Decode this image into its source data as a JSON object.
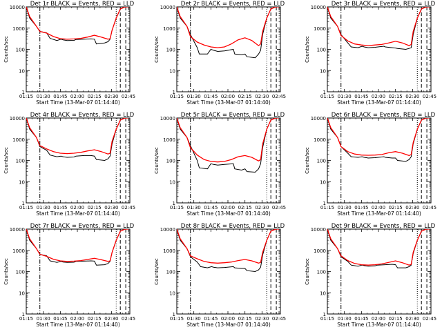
{
  "chart_data": [
    {
      "type": "line",
      "title": "Det 1r BLACK = Events, RED = LLD",
      "xlabel": "Start Time (13-Mar-07 01:14:40)",
      "ylabel": "Counts/sec",
      "yscale": "log",
      "ylim": [
        1,
        10000
      ],
      "x_ticks": [
        "01:15",
        "01:30",
        "01:45",
        "02:00",
        "02:15",
        "02:30",
        "02:45"
      ],
      "series": [
        {
          "color": "#000000",
          "x": [
            1.0,
            1.5,
            2.5,
            3.0,
            4.0,
            4.5,
            5.5,
            6.1,
            6.4,
            7.0,
            8.0,
            8.3,
            9.5,
            10.5,
            11.0,
            11.3,
            12.5,
            13.0,
            13.3,
            13.6,
            14.2,
            14.8,
            15.5,
            16.0
          ],
          "y": [
            10000,
            3000,
            1200,
            700,
            600,
            330,
            260,
            300,
            280,
            260,
            265,
            290,
            300,
            310,
            300,
            180,
            200,
            230,
            300,
            800,
            3000,
            8000,
            12000,
            12000
          ]
        },
        {
          "color": "#ff0000",
          "x": [
            1.0,
            1.5,
            2.5,
            3.0,
            4.0,
            5.0,
            6.0,
            7.0,
            8.0,
            9.0,
            10.0,
            11.0,
            12.0,
            13.0,
            13.3,
            13.6,
            14.2,
            14.8,
            15.5,
            16.0
          ],
          "y": [
            12000,
            3500,
            1200,
            700,
            580,
            400,
            320,
            300,
            310,
            330,
            380,
            460,
            380,
            300,
            320,
            800,
            3000,
            8000,
            12000,
            12000
          ]
        }
      ]
    },
    {
      "type": "line",
      "title": "Det 2r BLACK = Events, RED = LLD",
      "xlabel": "Start Time (13-Mar-07 01:14:40)",
      "ylabel": "Counts/sec",
      "yscale": "log",
      "ylim": [
        1,
        10000
      ],
      "x_ticks": [
        "01:15",
        "01:30",
        "01:45",
        "02:00",
        "02:15",
        "02:30",
        "02:45"
      ],
      "series": [
        {
          "color": "#000000",
          "x": [
            1.0,
            1.5,
            2.5,
            3.0,
            4.0,
            4.3,
            5.5,
            6.0,
            6.4,
            7.0,
            8.0,
            9.3,
            9.5,
            10.5,
            11.0,
            11.3,
            12.5,
            13.0,
            13.3,
            13.6,
            14.2,
            14.8,
            15.5,
            16.0
          ],
          "y": [
            10000,
            3000,
            1200,
            500,
            120,
            60,
            60,
            100,
            90,
            80,
            85,
            100,
            60,
            55,
            60,
            45,
            40,
            60,
            90,
            500,
            3000,
            8000,
            12000,
            12000
          ]
        },
        {
          "color": "#ff0000",
          "x": [
            1.0,
            1.5,
            2.5,
            3.0,
            4.0,
            5.0,
            6.0,
            7.0,
            8.0,
            9.0,
            10.0,
            11.0,
            12.0,
            13.0,
            13.3,
            13.6,
            14.2,
            14.8,
            15.5,
            16.0
          ],
          "y": [
            12000,
            3500,
            1200,
            400,
            220,
            160,
            130,
            120,
            130,
            180,
            280,
            350,
            260,
            150,
            180,
            700,
            3000,
            8000,
            12000,
            12000
          ]
        }
      ]
    },
    {
      "type": "line",
      "title": "Det 3r BLACK = Events, RED = LLD",
      "xlabel": "Start Time (13-Mar-07 01:14:40)",
      "ylabel": "Counts/sec",
      "yscale": "log",
      "ylim": [
        1,
        10000
      ],
      "x_ticks": [
        "01:15",
        "01:30",
        "01:45",
        "02:00",
        "02:15",
        "02:30",
        "02:45"
      ],
      "series": [
        {
          "color": "#000000",
          "x": [
            1.0,
            1.5,
            2.5,
            3.0,
            4.0,
            4.5,
            5.5,
            6.1,
            6.4,
            7.0,
            8.0,
            9.3,
            9.5,
            10.5,
            11.0,
            11.3,
            12.5,
            13.0,
            13.3,
            13.6,
            14.2,
            14.8,
            15.5,
            16.0
          ],
          "y": [
            10000,
            3000,
            1200,
            500,
            200,
            130,
            120,
            140,
            130,
            120,
            125,
            140,
            130,
            120,
            115,
            110,
            100,
            110,
            120,
            500,
            3000,
            8000,
            12000,
            12000
          ]
        },
        {
          "color": "#ff0000",
          "x": [
            1.0,
            1.5,
            2.5,
            3.0,
            4.0,
            5.0,
            6.0,
            7.0,
            8.0,
            9.0,
            10.0,
            11.0,
            12.0,
            13.0,
            13.3,
            13.6,
            14.2,
            14.8,
            15.5,
            16.0
          ],
          "y": [
            12000,
            3500,
            1200,
            450,
            250,
            180,
            160,
            150,
            160,
            170,
            200,
            240,
            200,
            150,
            170,
            700,
            3000,
            8000,
            12000,
            12000
          ]
        }
      ]
    },
    {
      "type": "line",
      "title": "Det 4r BLACK = Events, RED = LLD",
      "xlabel": "Start Time (13-Mar-07 01:14:40)",
      "ylabel": "Counts/sec",
      "yscale": "log",
      "ylim": [
        1,
        10000
      ],
      "x_ticks": [
        "01:15",
        "01:30",
        "01:45",
        "02:00",
        "02:15",
        "02:30",
        "02:45"
      ],
      "series": [
        {
          "color": "#000000",
          "x": [
            1.0,
            1.5,
            2.5,
            3.0,
            4.0,
            4.5,
            5.5,
            6.1,
            6.4,
            7.0,
            8.0,
            8.3,
            9.5,
            10.5,
            11.0,
            11.3,
            12.5,
            13.0,
            13.3,
            13.6,
            14.2,
            14.8,
            15.5,
            16.0
          ],
          "y": [
            10000,
            3000,
            1200,
            450,
            300,
            180,
            150,
            160,
            150,
            140,
            145,
            160,
            170,
            170,
            160,
            110,
            100,
            120,
            160,
            600,
            3000,
            8000,
            12000,
            12000
          ]
        },
        {
          "color": "#ff0000",
          "x": [
            1.0,
            1.5,
            2.5,
            3.0,
            4.0,
            5.0,
            6.0,
            7.0,
            8.0,
            9.0,
            10.0,
            11.0,
            12.0,
            13.0,
            13.3,
            13.6,
            14.2,
            14.8,
            15.5,
            16.0
          ],
          "y": [
            12000,
            3500,
            1200,
            500,
            350,
            260,
            220,
            210,
            220,
            240,
            280,
            320,
            260,
            200,
            220,
            800,
            3000,
            8000,
            12000,
            12000
          ]
        }
      ]
    },
    {
      "type": "line",
      "title": "Det 5r BLACK = Events, RED = LLD",
      "xlabel": "Start Time (13-Mar-07 01:14:40)",
      "ylabel": "Counts/sec",
      "yscale": "log",
      "ylim": [
        1,
        10000
      ],
      "x_ticks": [
        "01:15",
        "01:30",
        "01:45",
        "02:00",
        "02:15",
        "02:30",
        "02:45"
      ],
      "series": [
        {
          "color": "#000000",
          "x": [
            1.0,
            1.5,
            2.5,
            3.0,
            4.0,
            4.3,
            5.5,
            6.0,
            6.4,
            7.0,
            8.0,
            9.3,
            9.5,
            10.5,
            11.0,
            11.3,
            12.5,
            13.0,
            13.3,
            13.6,
            14.2,
            14.8,
            15.5,
            16.0
          ],
          "y": [
            10000,
            3000,
            1200,
            500,
            100,
            45,
            40,
            70,
            65,
            60,
            65,
            70,
            40,
            35,
            40,
            30,
            28,
            40,
            70,
            400,
            3000,
            8000,
            12000,
            12000
          ]
        },
        {
          "color": "#ff0000",
          "x": [
            1.0,
            1.5,
            2.5,
            3.0,
            4.0,
            5.0,
            6.0,
            7.0,
            8.0,
            9.0,
            10.0,
            11.0,
            12.0,
            13.0,
            13.3,
            13.6,
            14.2,
            14.8,
            15.5,
            16.0
          ],
          "y": [
            12000,
            3500,
            1200,
            400,
            180,
            110,
            90,
            85,
            90,
            110,
            150,
            170,
            140,
            95,
            110,
            600,
            3000,
            8000,
            12000,
            12000
          ]
        }
      ]
    },
    {
      "type": "line",
      "title": "Det 6r BLACK = Events, RED = LLD",
      "xlabel": "Start Time (13-Mar-07 01:14:40)",
      "ylabel": "Counts/sec",
      "yscale": "log",
      "ylim": [
        1,
        10000
      ],
      "x_ticks": [
        "01:15",
        "01:30",
        "01:45",
        "02:00",
        "02:15",
        "02:30",
        "02:45"
      ],
      "series": [
        {
          "color": "#000000",
          "x": [
            1.0,
            1.5,
            2.5,
            3.0,
            4.0,
            4.5,
            5.5,
            6.1,
            6.4,
            7.0,
            8.0,
            9.3,
            9.5,
            10.5,
            11.0,
            11.3,
            12.5,
            13.0,
            13.3,
            13.6,
            14.2,
            14.8,
            15.5,
            16.0
          ],
          "y": [
            10000,
            3000,
            1200,
            450,
            220,
            150,
            140,
            150,
            140,
            130,
            135,
            150,
            140,
            130,
            130,
            100,
            90,
            110,
            150,
            600,
            3000,
            8000,
            12000,
            12000
          ]
        },
        {
          "color": "#ff0000",
          "x": [
            1.0,
            1.5,
            2.5,
            3.0,
            4.0,
            5.0,
            6.0,
            7.0,
            8.0,
            9.0,
            10.0,
            11.0,
            12.0,
            13.0,
            13.3,
            13.6,
            14.2,
            14.8,
            15.5,
            16.0
          ],
          "y": [
            12000,
            3500,
            1200,
            450,
            260,
            200,
            180,
            175,
            180,
            190,
            230,
            260,
            220,
            170,
            190,
            700,
            3000,
            8000,
            12000,
            12000
          ]
        }
      ]
    },
    {
      "type": "line",
      "title": "Det 7r BLACK = Events, RED = LLD",
      "xlabel": "Start Time (13-Mar-07 01:14:40)",
      "ylabel": "Counts/sec",
      "yscale": "log",
      "ylim": [
        1,
        10000
      ],
      "x_ticks": [
        "01:15",
        "01:30",
        "01:45",
        "02:00",
        "02:15",
        "02:30",
        "02:45"
      ],
      "series": [
        {
          "color": "#000000",
          "x": [
            1.0,
            1.5,
            2.5,
            3.0,
            4.0,
            4.5,
            5.5,
            6.1,
            6.4,
            7.0,
            8.0,
            8.3,
            9.5,
            10.5,
            11.0,
            11.3,
            12.5,
            13.0,
            13.3,
            13.6,
            14.2,
            14.8,
            15.5,
            16.0
          ],
          "y": [
            10000,
            3000,
            1200,
            650,
            550,
            320,
            270,
            300,
            280,
            270,
            275,
            300,
            310,
            320,
            310,
            200,
            210,
            240,
            300,
            800,
            3000,
            8000,
            12000,
            12000
          ]
        },
        {
          "color": "#ff0000",
          "x": [
            1.0,
            1.5,
            2.5,
            3.0,
            4.0,
            5.0,
            6.0,
            7.0,
            8.0,
            9.0,
            10.0,
            11.0,
            12.0,
            13.0,
            13.3,
            13.6,
            14.2,
            14.8,
            15.5,
            16.0
          ],
          "y": [
            12000,
            3500,
            1200,
            650,
            520,
            380,
            320,
            300,
            310,
            330,
            370,
            420,
            360,
            300,
            320,
            800,
            3000,
            8000,
            12000,
            12000
          ]
        }
      ]
    },
    {
      "type": "line",
      "title": "Det 8r BLACK = Events, RED = LLD",
      "xlabel": "Start Time (13-Mar-07 01:14:40)",
      "ylabel": "Counts/sec",
      "yscale": "log",
      "ylim": [
        1,
        10000
      ],
      "x_ticks": [
        "01:15",
        "01:30",
        "01:45",
        "02:00",
        "02:15",
        "02:30",
        "02:45"
      ],
      "series": [
        {
          "color": "#000000",
          "x": [
            1.0,
            1.5,
            2.5,
            3.0,
            4.0,
            4.5,
            5.5,
            6.1,
            6.4,
            7.0,
            8.0,
            9.3,
            9.5,
            10.5,
            11.0,
            11.3,
            12.5,
            13.0,
            13.3,
            13.6,
            14.2,
            14.8,
            15.5,
            16.0
          ],
          "y": [
            10000,
            3000,
            1200,
            500,
            280,
            170,
            150,
            170,
            160,
            150,
            155,
            170,
            150,
            140,
            140,
            110,
            100,
            120,
            160,
            600,
            3000,
            8000,
            12000,
            12000
          ]
        },
        {
          "color": "#ff0000",
          "x": [
            1.0,
            1.5,
            2.5,
            3.0,
            4.0,
            5.0,
            6.0,
            7.0,
            8.0,
            9.0,
            10.0,
            11.0,
            12.0,
            13.0,
            13.3,
            13.6,
            14.2,
            14.8,
            15.5,
            16.0
          ],
          "y": [
            12000,
            3500,
            1200,
            550,
            400,
            300,
            260,
            250,
            260,
            280,
            330,
            370,
            320,
            250,
            270,
            800,
            3000,
            8000,
            12000,
            12000
          ]
        }
      ]
    },
    {
      "type": "line",
      "title": "Det 9r BLACK = Events, RED = LLD",
      "xlabel": "Start Time (13-Mar-07 01:14:40)",
      "ylabel": "Counts/sec",
      "yscale": "log",
      "ylim": [
        1,
        10000
      ],
      "x_ticks": [
        "01:15",
        "01:30",
        "01:45",
        "02:00",
        "02:15",
        "02:30",
        "02:45"
      ],
      "series": [
        {
          "color": "#000000",
          "x": [
            1.0,
            1.5,
            2.5,
            3.0,
            4.0,
            4.5,
            5.5,
            6.1,
            6.4,
            7.0,
            8.0,
            8.3,
            9.5,
            10.5,
            11.0,
            11.3,
            12.5,
            13.0,
            13.3,
            13.6,
            14.2,
            14.8,
            15.5,
            16.0
          ],
          "y": [
            10000,
            3000,
            1200,
            500,
            300,
            200,
            180,
            200,
            190,
            180,
            185,
            200,
            210,
            220,
            210,
            150,
            150,
            170,
            200,
            700,
            3000,
            8000,
            12000,
            12000
          ]
        },
        {
          "color": "#ff0000",
          "x": [
            1.0,
            1.5,
            2.5,
            3.0,
            4.0,
            5.0,
            6.0,
            7.0,
            8.0,
            9.0,
            10.0,
            11.0,
            12.0,
            13.0,
            13.3,
            13.6,
            14.2,
            14.8,
            15.5,
            16.0
          ],
          "y": [
            12000,
            3500,
            1200,
            550,
            330,
            240,
            210,
            200,
            210,
            230,
            270,
            320,
            260,
            200,
            220,
            800,
            3000,
            8000,
            12000,
            12000
          ]
        }
      ]
    }
  ]
}
